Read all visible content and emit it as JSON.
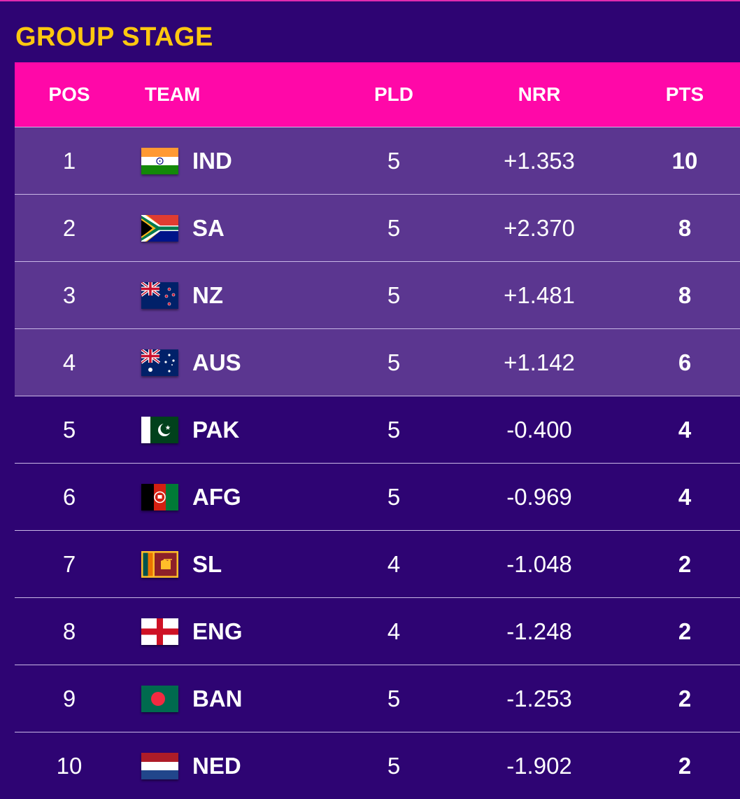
{
  "title": "GROUP STAGE",
  "columns": {
    "pos": "POS",
    "team": "TEAM",
    "pld": "PLD",
    "nrr": "NRR",
    "pts": "PTS"
  },
  "rows": [
    {
      "pos": "1",
      "team": "IND",
      "flag_icon": "india-flag-icon",
      "pld": "5",
      "nrr": "+1.353",
      "pts": "10",
      "qualified": true
    },
    {
      "pos": "2",
      "team": "SA",
      "flag_icon": "south-africa-flag-icon",
      "pld": "5",
      "nrr": "+2.370",
      "pts": "8",
      "qualified": true
    },
    {
      "pos": "3",
      "team": "NZ",
      "flag_icon": "new-zealand-flag-icon",
      "pld": "5",
      "nrr": "+1.481",
      "pts": "8",
      "qualified": true
    },
    {
      "pos": "4",
      "team": "AUS",
      "flag_icon": "australia-flag-icon",
      "pld": "5",
      "nrr": "+1.142",
      "pts": "6",
      "qualified": true
    },
    {
      "pos": "5",
      "team": "PAK",
      "flag_icon": "pakistan-flag-icon",
      "pld": "5",
      "nrr": "-0.400",
      "pts": "4",
      "qualified": false
    },
    {
      "pos": "6",
      "team": "AFG",
      "flag_icon": "afghanistan-flag-icon",
      "pld": "5",
      "nrr": "-0.969",
      "pts": "4",
      "qualified": false
    },
    {
      "pos": "7",
      "team": "SL",
      "flag_icon": "sri-lanka-flag-icon",
      "pld": "4",
      "nrr": "-1.048",
      "pts": "2",
      "qualified": false
    },
    {
      "pos": "8",
      "team": "ENG",
      "flag_icon": "england-flag-icon",
      "pld": "4",
      "nrr": "-1.248",
      "pts": "2",
      "qualified": false
    },
    {
      "pos": "9",
      "team": "BAN",
      "flag_icon": "bangladesh-flag-icon",
      "pld": "5",
      "nrr": "-1.253",
      "pts": "2",
      "qualified": false
    },
    {
      "pos": "10",
      "team": "NED",
      "flag_icon": "netherlands-flag-icon",
      "pld": "5",
      "nrr": "-1.902",
      "pts": "2",
      "qualified": false
    }
  ],
  "colors": {
    "background": "#2e0473",
    "header": "#ff08a8",
    "title": "#ffc80f",
    "qualified_row": "#5b3690"
  }
}
